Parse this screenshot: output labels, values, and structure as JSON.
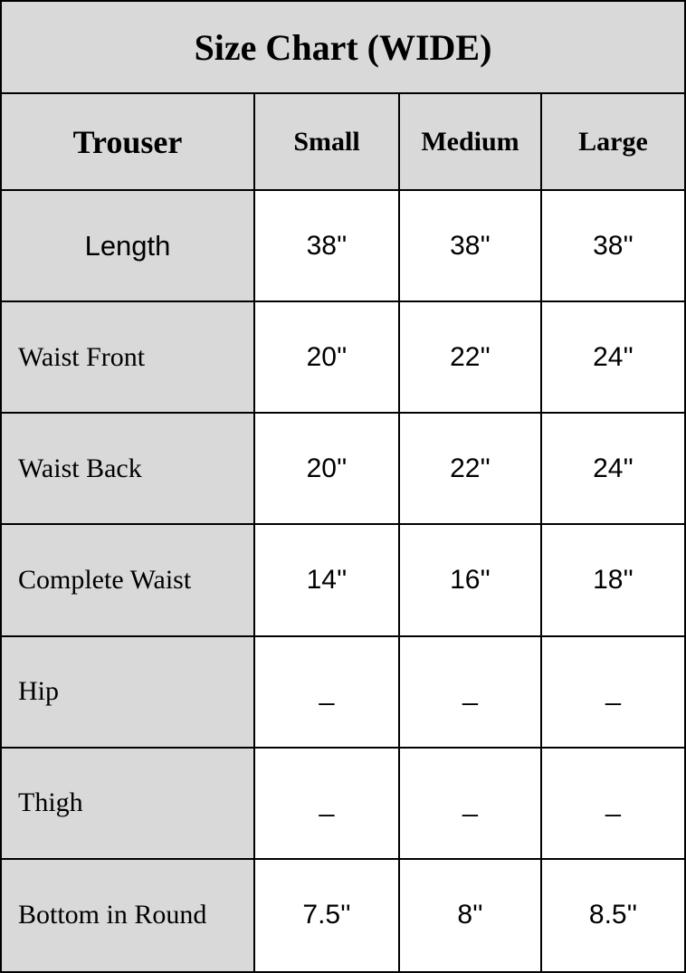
{
  "theme": {
    "table_bg": "#d9d9d9",
    "value_bg": "#ffffff",
    "border_color": "#000000",
    "text_color": "#000000"
  },
  "table": {
    "title": "Size Chart (WIDE)",
    "columns": [
      "Trouser",
      "Small",
      "Medium",
      "Large"
    ],
    "rows": [
      {
        "label": "Length",
        "values": [
          "38''",
          "38''",
          "38''"
        ]
      },
      {
        "label": "Waist Front",
        "values": [
          "20''",
          "22''",
          "24''"
        ]
      },
      {
        "label": "Waist Back",
        "values": [
          "20''",
          "22''",
          "24''"
        ]
      },
      {
        "label": "Complete Waist",
        "values": [
          "14''",
          "16''",
          "18''"
        ]
      },
      {
        "label": "Hip",
        "values": [
          "_",
          "_",
          "_"
        ]
      },
      {
        "label": "Thigh",
        "values": [
          "_",
          "_",
          "_"
        ]
      },
      {
        "label": "Bottom in Round",
        "values": [
          "7.5''",
          "8''",
          "8.5''"
        ]
      }
    ]
  },
  "chart_data": {
    "type": "table",
    "title": "Size Chart (WIDE)",
    "columns": [
      "Trouser",
      "Small",
      "Medium",
      "Large"
    ],
    "rows": [
      [
        "Length",
        "38''",
        "38''",
        "38''"
      ],
      [
        "Waist Front",
        "20''",
        "22''",
        "24''"
      ],
      [
        "Waist Back",
        "20''",
        "22''",
        "24''"
      ],
      [
        "Complete Waist",
        "14''",
        "16''",
        "18''"
      ],
      [
        "Hip",
        "_",
        "_",
        "_"
      ],
      [
        "Thigh",
        "_",
        "_",
        "_"
      ],
      [
        "Bottom in Round",
        "7.5''",
        "8''",
        "8.5''"
      ]
    ]
  }
}
